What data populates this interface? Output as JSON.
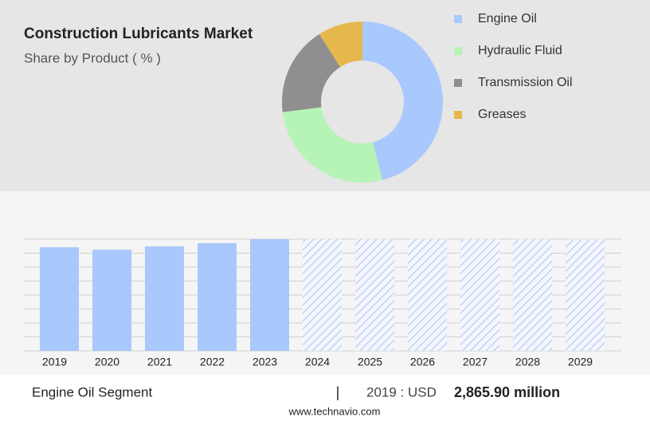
{
  "chart_data": [
    {
      "type": "pie",
      "title": "Construction Lubricants Market",
      "subtitle": "Share by Product ( % )",
      "categories": [
        "Engine Oil",
        "Hydraulic Fluid",
        "Transmission Oil",
        "Greases"
      ],
      "values": [
        46,
        27,
        18,
        9
      ],
      "colors": [
        "#a9c8fc",
        "#b6f3b7",
        "#8f8f8f",
        "#e4b84c"
      ],
      "donut": true
    },
    {
      "type": "bar",
      "categories": [
        "2019",
        "2020",
        "2021",
        "2022",
        "2023",
        "2024",
        "2025",
        "2026",
        "2027",
        "2028",
        "2029"
      ],
      "values": [
        2865.9,
        2800,
        2890,
        2980,
        3090,
        null,
        null,
        null,
        null,
        null,
        null
      ],
      "color": "#a9c8fc",
      "ylim": [
        0,
        3090
      ],
      "grid": true
    }
  ],
  "footer": {
    "segment": "Engine Oil Segment",
    "separator": "|",
    "year_label": "2019 : USD",
    "amount": "2,865.90 million",
    "source": "www.technavio.com"
  }
}
